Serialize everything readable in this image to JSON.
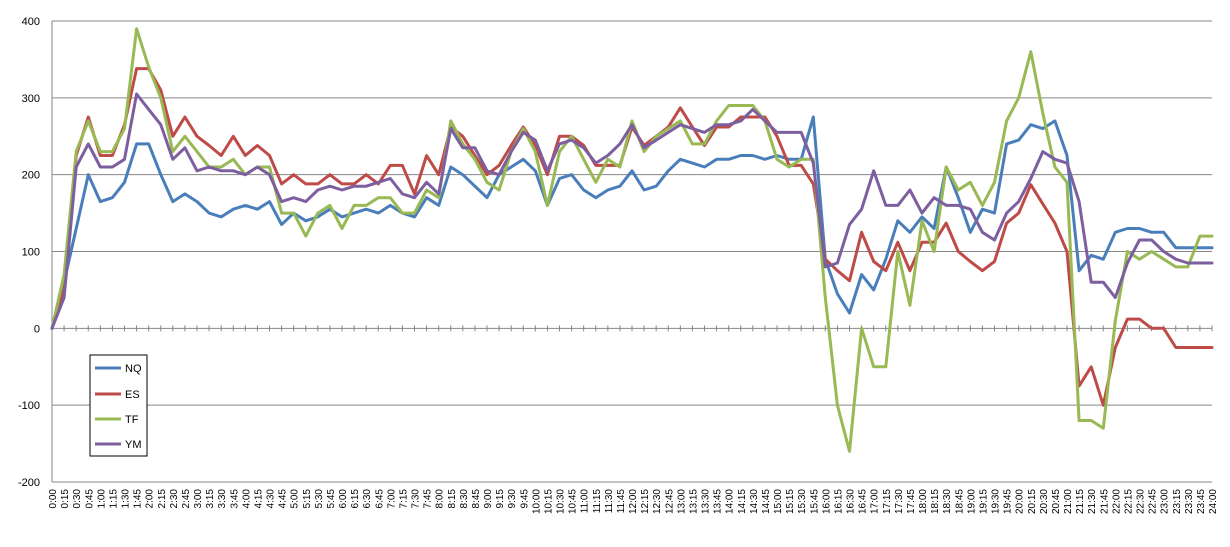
{
  "chart_data": {
    "type": "line",
    "title": "",
    "xlabel": "",
    "ylabel": "",
    "ylim": [
      -200,
      400
    ],
    "yticks": [
      -200,
      -100,
      0,
      100,
      200,
      300,
      400
    ],
    "grid": "horizontal",
    "legend_position": "bottom-left",
    "x": [
      "0:00",
      "0:15",
      "0:30",
      "0:45",
      "1:00",
      "1:15",
      "1:30",
      "1:45",
      "2:00",
      "2:15",
      "2:30",
      "2:45",
      "3:00",
      "3:15",
      "3:30",
      "3:45",
      "4:00",
      "4:15",
      "4:30",
      "4:45",
      "5:00",
      "5:15",
      "5:30",
      "5:45",
      "6:00",
      "6:15",
      "6:30",
      "6:45",
      "7:00",
      "7:15",
      "7:30",
      "7:45",
      "8:00",
      "8:15",
      "8:30",
      "8:45",
      "9:00",
      "9:15",
      "9:30",
      "9:45",
      "10:00",
      "10:15",
      "10:30",
      "10:45",
      "11:00",
      "11:15",
      "11:30",
      "11:45",
      "12:00",
      "12:15",
      "12:30",
      "12:45",
      "13:00",
      "13:15",
      "13:30",
      "13:45",
      "14:00",
      "14:15",
      "14:30",
      "14:45",
      "15:00",
      "15:15",
      "15:30",
      "15:45",
      "16:00",
      "16:15",
      "16:30",
      "16:45",
      "17:00",
      "17:15",
      "17:30",
      "17:45",
      "18:00",
      "18:15",
      "18:30",
      "18:45",
      "19:00",
      "19:15",
      "19:30",
      "19:45",
      "20:00",
      "20:15",
      "20:30",
      "20:45",
      "21:00",
      "21:15",
      "21:30",
      "21:45",
      "22:00",
      "22:15",
      "22:30",
      "22:45",
      "23:00",
      "23:15",
      "23:30",
      "23:45",
      "24:00"
    ],
    "series": [
      {
        "name": "NQ",
        "color": "#4a7ebb",
        "values": [
          0,
          60,
          130,
          200,
          165,
          170,
          190,
          240,
          240,
          200,
          165,
          175,
          165,
          150,
          145,
          155,
          160,
          155,
          165,
          135,
          150,
          140,
          145,
          155,
          145,
          150,
          155,
          150,
          160,
          150,
          145,
          170,
          160,
          210,
          200,
          185,
          170,
          200,
          210,
          220,
          205,
          160,
          195,
          200,
          180,
          170,
          180,
          185,
          205,
          180,
          185,
          205,
          220,
          215,
          210,
          220,
          220,
          225,
          225,
          220,
          225,
          220,
          220,
          275,
          90,
          45,
          20,
          70,
          50,
          90,
          140,
          125,
          145,
          130,
          210,
          170,
          125,
          155,
          150,
          240,
          245,
          265,
          260,
          270,
          225,
          75,
          95,
          90,
          125,
          130,
          130,
          125,
          125,
          105,
          105,
          105,
          105
        ]
      },
      {
        "name": "ES",
        "color": "#be4b48",
        "values": [
          0,
          50,
          225,
          275,
          225,
          225,
          265,
          338,
          338,
          310,
          250,
          275,
          250,
          238,
          225,
          250,
          225,
          238,
          225,
          188,
          200,
          188,
          188,
          200,
          188,
          188,
          200,
          188,
          212,
          212,
          175,
          225,
          200,
          262,
          250,
          225,
          200,
          212,
          238,
          262,
          238,
          200,
          250,
          250,
          238,
          212,
          212,
          212,
          262,
          238,
          250,
          262,
          287,
          262,
          238,
          262,
          262,
          275,
          275,
          275,
          250,
          212,
          212,
          188,
          90,
          75,
          62,
          125,
          87,
          75,
          112,
          75,
          112,
          112,
          137,
          100,
          87,
          75,
          87,
          137,
          150,
          187,
          162,
          137,
          100,
          -75,
          -50,
          -100,
          -25,
          12,
          12,
          0,
          0,
          -25,
          -25,
          -25,
          -25
        ]
      },
      {
        "name": "TF",
        "color": "#98b954",
        "values": [
          0,
          70,
          230,
          270,
          230,
          230,
          260,
          390,
          340,
          300,
          230,
          250,
          230,
          210,
          210,
          220,
          200,
          210,
          210,
          150,
          150,
          120,
          150,
          160,
          130,
          160,
          160,
          170,
          170,
          150,
          150,
          180,
          170,
          270,
          240,
          220,
          190,
          180,
          230,
          260,
          230,
          160,
          230,
          250,
          220,
          190,
          220,
          210,
          270,
          230,
          250,
          260,
          270,
          240,
          240,
          270,
          290,
          290,
          290,
          270,
          220,
          210,
          220,
          220,
          40,
          -100,
          -160,
          0,
          -50,
          -50,
          100,
          30,
          140,
          100,
          210,
          180,
          190,
          160,
          190,
          270,
          300,
          360,
          280,
          210,
          190,
          -120,
          -120,
          -130,
          10,
          100,
          90,
          100,
          90,
          80,
          80,
          120,
          120
        ]
      },
      {
        "name": "YM",
        "color": "#7d5fa0",
        "values": [
          0,
          40,
          210,
          240,
          210,
          210,
          220,
          305,
          285,
          265,
          220,
          235,
          205,
          210,
          205,
          205,
          200,
          210,
          200,
          165,
          170,
          165,
          180,
          185,
          180,
          185,
          185,
          190,
          195,
          175,
          170,
          190,
          175,
          260,
          235,
          235,
          205,
          200,
          230,
          255,
          245,
          205,
          240,
          245,
          235,
          215,
          225,
          240,
          265,
          235,
          245,
          255,
          265,
          260,
          255,
          265,
          265,
          270,
          285,
          270,
          255,
          255,
          255,
          215,
          80,
          85,
          135,
          155,
          205,
          160,
          160,
          180,
          150,
          170,
          160,
          160,
          155,
          125,
          115,
          150,
          165,
          195,
          230,
          220,
          215,
          165,
          60,
          60,
          40,
          85,
          115,
          115,
          100,
          90,
          85,
          85,
          85
        ]
      }
    ]
  }
}
